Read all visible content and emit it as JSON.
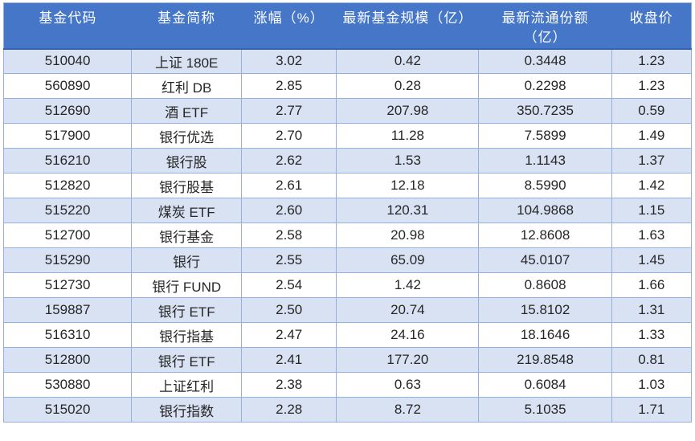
{
  "chart_data": {
    "type": "table",
    "columns": [
      "基金代码",
      "基金简称",
      "涨幅（%）",
      "最新基金规模（亿）",
      "最新流通份额（亿）",
      "收盘价"
    ],
    "rows": [
      [
        "510040",
        "上证 180E",
        "3.02",
        "0.42",
        "0.3448",
        "1.23"
      ],
      [
        "560890",
        "红利 DB",
        "2.85",
        "0.28",
        "0.2298",
        "1.23"
      ],
      [
        "512690",
        "酒 ETF",
        "2.77",
        "207.98",
        "350.7235",
        "0.59"
      ],
      [
        "517900",
        "银行优选",
        "2.70",
        "11.28",
        "7.5899",
        "1.49"
      ],
      [
        "516210",
        "银行股",
        "2.62",
        "1.53",
        "1.1143",
        "1.37"
      ],
      [
        "512820",
        "银行股基",
        "2.61",
        "12.18",
        "8.5990",
        "1.42"
      ],
      [
        "515220",
        "煤炭 ETF",
        "2.60",
        "120.31",
        "104.9868",
        "1.15"
      ],
      [
        "512700",
        "银行基金",
        "2.58",
        "20.98",
        "12.8608",
        "1.63"
      ],
      [
        "515290",
        "银行",
        "2.55",
        "65.09",
        "45.0107",
        "1.45"
      ],
      [
        "512730",
        "银行 FUND",
        "2.54",
        "1.42",
        "0.8608",
        "1.66"
      ],
      [
        "159887",
        "银行 ETF",
        "2.50",
        "20.74",
        "15.8102",
        "1.31"
      ],
      [
        "516310",
        "银行指基",
        "2.47",
        "24.16",
        "18.1646",
        "1.33"
      ],
      [
        "512800",
        "银行 ETF",
        "2.41",
        "177.20",
        "219.8548",
        "0.81"
      ],
      [
        "530880",
        "上证红利",
        "2.38",
        "0.63",
        "0.6084",
        "1.03"
      ],
      [
        "515020",
        "银行指数",
        "2.28",
        "8.72",
        "5.1035",
        "1.71"
      ]
    ],
    "layout": {
      "header_position": "top",
      "grid": "on",
      "row_striping": "odd-rows-light-blue"
    }
  },
  "table": {
    "header_lines": [
      [
        "基金代码"
      ],
      [
        "基金简称"
      ],
      [
        "涨幅（%）"
      ],
      [
        "最新基金规模（亿）"
      ],
      [
        "最新流通份额",
        "（亿）"
      ],
      [
        "收盘价"
      ]
    ]
  },
  "colors": {
    "header_bg": "#4576c8",
    "header_text": "#ffffff",
    "row_alt_bg": "#d9e2f3",
    "row_bg": "#ffffff",
    "border": "#94aedd",
    "header_border": "#3563ae",
    "text": "#262626"
  }
}
